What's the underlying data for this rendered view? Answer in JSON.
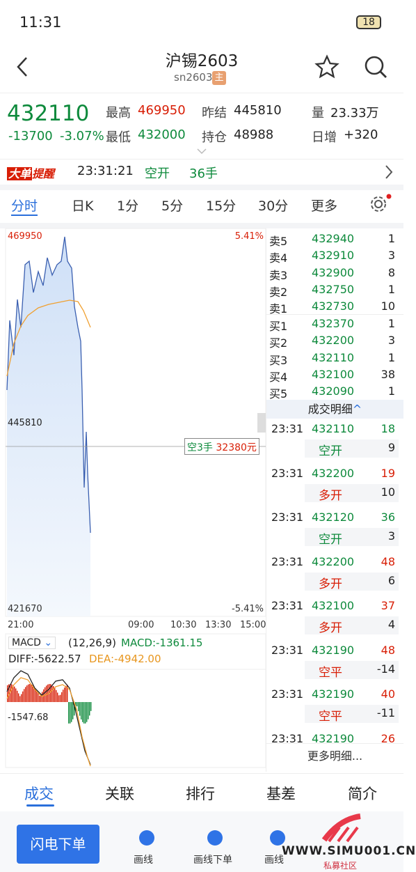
{
  "status": {
    "time": "11:31",
    "battery": "18"
  },
  "header": {
    "title": "沪锡2603",
    "code": "sn2603",
    "badge": "主"
  },
  "quote": {
    "price": "432110",
    "change": "-13700",
    "pct": "-3.07%",
    "fields": [
      {
        "label": "最高",
        "value": "469950",
        "color": "#d81e06"
      },
      {
        "label": "最低",
        "value": "432000",
        "color": "#0e8a3c"
      },
      {
        "label": "昨结",
        "value": "445810",
        "color": "#222"
      },
      {
        "label": "持仓",
        "value": "48988",
        "color": "#222"
      },
      {
        "label": "量",
        "value": "23.33万",
        "color": "#222"
      },
      {
        "label": "日增",
        "value": "+320",
        "color": "#222"
      }
    ]
  },
  "alert": {
    "badge1": "大单",
    "badge2": "提醒",
    "time": "23:31:21",
    "action": "空开",
    "qty": "36手"
  },
  "tabs": [
    "分时",
    "日K",
    "1分",
    "5分",
    "15分",
    "30分",
    "更多"
  ],
  "chart": {
    "max": "469950",
    "max_pct": "5.41%",
    "mid": "445810",
    "min": "421670",
    "min_pct": "-5.41%",
    "tip_qty": "空3手",
    "tip_amount": "32380元",
    "times": [
      "21:00",
      "09:00",
      "10:30",
      "13:30",
      "15:00"
    ]
  },
  "macd": {
    "name": "MACD",
    "params": "(12,26,9)",
    "macd": "MACD:-1361.15",
    "diff": "DIFF:-5622.57",
    "dea": "DEA:-4942.00",
    "level": "-1547.68"
  },
  "book": {
    "asks": [
      [
        "卖5",
        "432940",
        "1"
      ],
      [
        "卖4",
        "432910",
        "3"
      ],
      [
        "卖3",
        "432900",
        "8"
      ],
      [
        "卖2",
        "432750",
        "1"
      ],
      [
        "卖1",
        "432730",
        "10"
      ]
    ],
    "bids": [
      [
        "买1",
        "432370",
        "1"
      ],
      [
        "买2",
        "432200",
        "3"
      ],
      [
        "买3",
        "432110",
        "1"
      ],
      [
        "买4",
        "432100",
        "38"
      ],
      [
        "买5",
        "432090",
        "1"
      ]
    ]
  },
  "trades": {
    "title": "成交明细",
    "more": "更多明细...",
    "rows": [
      {
        "time": "23:31",
        "price": "432110",
        "vol": "18",
        "vol_color": "#0e8a3c",
        "type": "空开",
        "type_color": "#0e8a3c",
        "qty": "9"
      },
      {
        "time": "23:31",
        "price": "432200",
        "vol": "19",
        "vol_color": "#d81e06",
        "type": "多开",
        "type_color": "#d81e06",
        "qty": "10"
      },
      {
        "time": "23:31",
        "price": "432120",
        "vol": "36",
        "vol_color": "#0e8a3c",
        "type": "空开",
        "type_color": "#0e8a3c",
        "qty": "3"
      },
      {
        "time": "23:31",
        "price": "432200",
        "vol": "48",
        "vol_color": "#d81e06",
        "type": "多开",
        "type_color": "#d81e06",
        "qty": "6"
      },
      {
        "time": "23:31",
        "price": "432100",
        "vol": "37",
        "vol_color": "#d81e06",
        "type": "多开",
        "type_color": "#d81e06",
        "qty": "4"
      },
      {
        "time": "23:31",
        "price": "432190",
        "vol": "48",
        "vol_color": "#d81e06",
        "type": "空平",
        "type_color": "#d81e06",
        "qty": "-14"
      },
      {
        "time": "23:31",
        "price": "432190",
        "vol": "40",
        "vol_color": "#d81e06",
        "type": "空平",
        "type_color": "#d81e06",
        "qty": "-11"
      },
      {
        "time": "23:31",
        "price": "432190",
        "vol": "26",
        "vol_color": "#d81e06"
      }
    ]
  },
  "bottom_tabs": [
    "成交",
    "关联",
    "排行",
    "基差",
    "简介"
  ],
  "actions": {
    "flash": "闪电下单",
    "items": [
      "画线",
      "画线下单",
      "画线"
    ]
  },
  "watermark": {
    "url": "WWW.SIMU001.CN",
    "name": "私募社区"
  }
}
